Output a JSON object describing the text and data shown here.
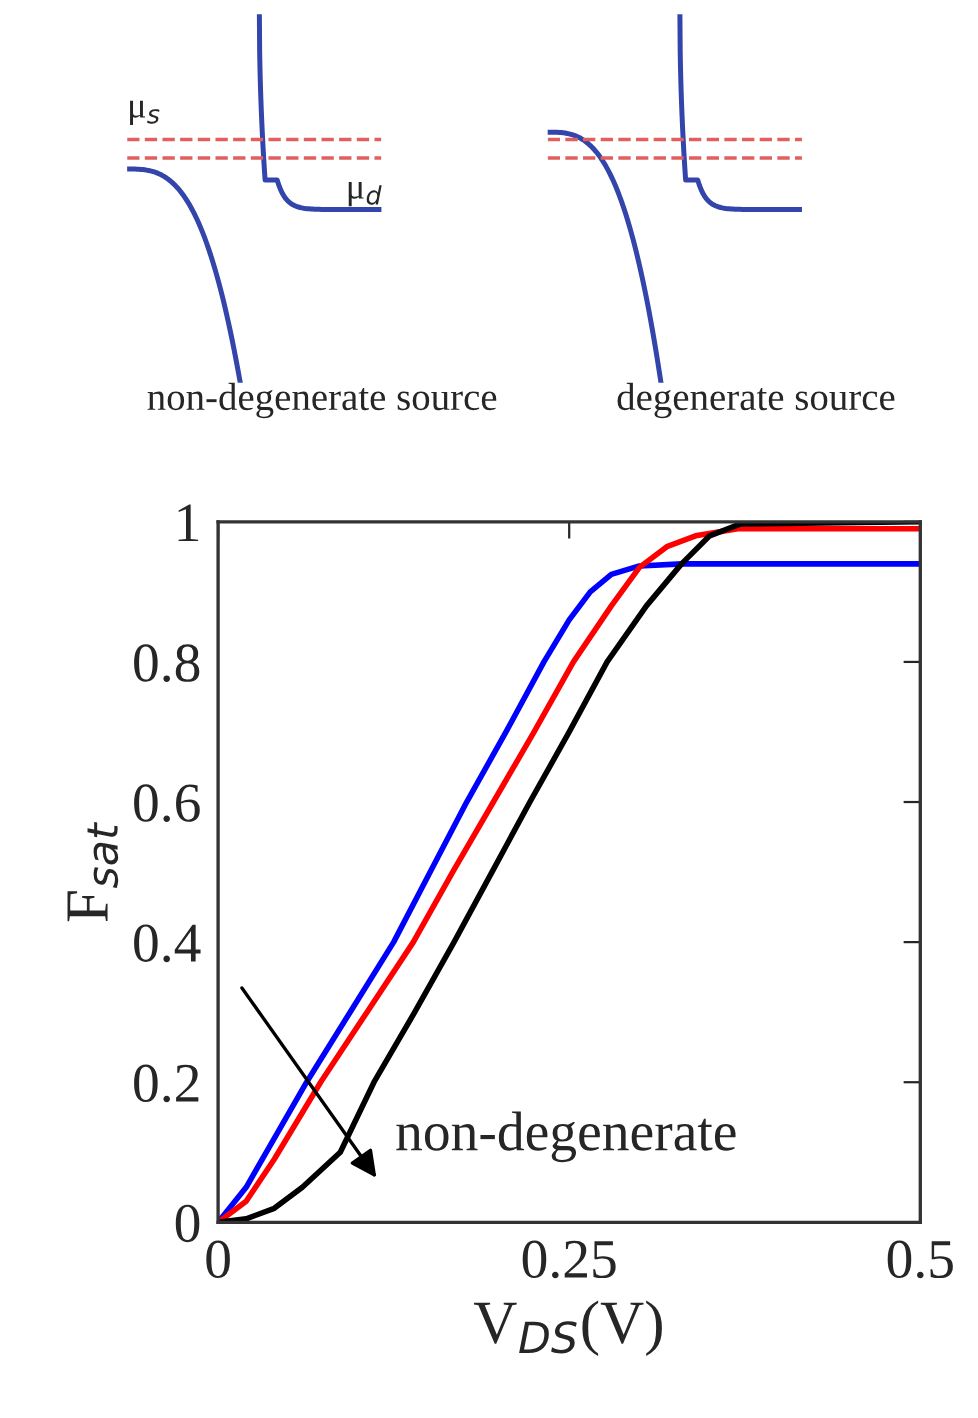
{
  "chart_data": {
    "type": "line",
    "xlabel": "V$_{DS}$(V)",
    "ylabel": "F$_{sat}$",
    "xlim": [
      0,
      0.5
    ],
    "xticks": [
      0,
      0.25,
      0.5
    ],
    "ylim": [
      0,
      1
    ],
    "yticks": [
      0,
      0.2,
      0.4,
      0.6,
      0.8,
      1
    ],
    "grid": false,
    "legend": false,
    "line_style": "solid",
    "marker": "none",
    "series": [
      {
        "color": "#0000ff",
        "x": [
          0,
          0.02,
          0.04,
          0.063,
          0.094,
          0.125,
          0.151,
          0.177,
          0.205,
          0.232,
          0.25,
          0.265,
          0.28,
          0.3,
          0.33,
          0.5
        ],
        "values": [
          0,
          0.05,
          0.12,
          0.2,
          0.3,
          0.4,
          0.5,
          0.6,
          0.7,
          0.8,
          0.86,
          0.9,
          0.925,
          0.937,
          0.94,
          0.94
        ]
      },
      {
        "color": "#ff0000",
        "x": [
          0,
          0.02,
          0.04,
          0.073,
          0.106,
          0.139,
          0.167,
          0.196,
          0.225,
          0.253,
          0.28,
          0.3,
          0.32,
          0.34,
          0.37,
          0.5
        ],
        "values": [
          0,
          0.03,
          0.09,
          0.2,
          0.3,
          0.4,
          0.5,
          0.6,
          0.7,
          0.8,
          0.88,
          0.935,
          0.965,
          0.98,
          0.99,
          0.99
        ]
      },
      {
        "color": "#000000",
        "x": [
          0,
          0.02,
          0.04,
          0.06,
          0.087,
          0.111,
          0.14,
          0.168,
          0.195,
          0.222,
          0.25,
          0.277,
          0.305,
          0.33,
          0.35,
          0.372,
          0.5
        ],
        "values": [
          0,
          0.005,
          0.02,
          0.05,
          0.1,
          0.2,
          0.3,
          0.4,
          0.5,
          0.6,
          0.7,
          0.8,
          0.88,
          0.94,
          0.98,
          0.997,
          1.0
        ]
      }
    ],
    "annotations": [
      "μ$_{s}$",
      "μ$_{d}$",
      "non-degenerate source",
      "degenerate source",
      "non-degenerate"
    ]
  }
}
